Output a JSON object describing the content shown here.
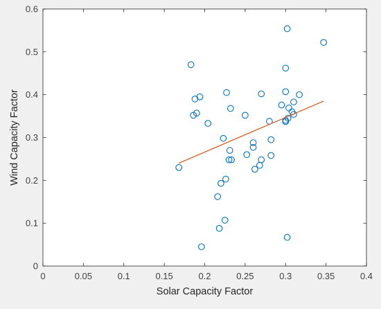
{
  "chart_data": {
    "type": "scatter",
    "xlabel": "Solar Capacity Factor",
    "ylabel": "Wind Capacity Factor",
    "xlim": [
      0,
      0.4
    ],
    "ylim": [
      0,
      0.6
    ],
    "xticks": [
      "0",
      "0.05",
      "0.1",
      "0.15",
      "0.2",
      "0.25",
      "0.3",
      "0.35",
      "0.4"
    ],
    "yticks": [
      "0",
      "0.1",
      "0.2",
      "0.3",
      "0.4",
      "0.5",
      "0.6"
    ],
    "grid": false,
    "legend": "none",
    "colors": {
      "markers": "#0072bd",
      "fit_line": "#d95319",
      "axes": "#262626",
      "plot_background": "#ffffff",
      "figure_background": "#f0f0f0"
    },
    "series": [
      {
        "marker": "circle-open",
        "x": [
          0.168,
          0.183,
          0.186,
          0.188,
          0.19,
          0.194,
          0.196,
          0.204,
          0.216,
          0.218,
          0.22,
          0.223,
          0.225,
          0.226,
          0.227,
          0.23,
          0.231,
          0.232,
          0.233,
          0.25,
          0.252,
          0.26,
          0.26,
          0.262,
          0.268,
          0.27,
          0.27,
          0.28,
          0.282,
          0.282,
          0.295,
          0.3,
          0.3,
          0.3,
          0.3,
          0.302,
          0.302,
          0.303,
          0.304,
          0.308,
          0.31,
          0.31,
          0.317,
          0.347
        ],
        "y": [
          0.23,
          0.47,
          0.352,
          0.39,
          0.357,
          0.395,
          0.045,
          0.333,
          0.162,
          0.088,
          0.193,
          0.298,
          0.107,
          0.203,
          0.405,
          0.248,
          0.27,
          0.368,
          0.248,
          0.352,
          0.26,
          0.288,
          0.277,
          0.226,
          0.235,
          0.248,
          0.402,
          0.338,
          0.295,
          0.258,
          0.376,
          0.462,
          0.407,
          0.34,
          0.337,
          0.067,
          0.554,
          0.345,
          0.369,
          0.36,
          0.383,
          0.354,
          0.4,
          0.522
        ]
      }
    ],
    "fit_line": {
      "x": [
        0.168,
        0.347
      ],
      "y": [
        0.24,
        0.385
      ]
    }
  }
}
